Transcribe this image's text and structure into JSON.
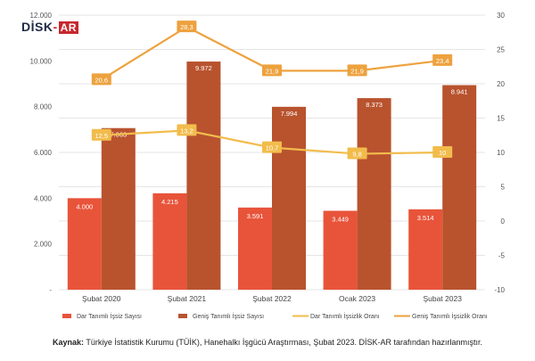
{
  "logo": {
    "part1": "DİSK",
    "part2": "-",
    "part3": "AR"
  },
  "caption": {
    "lead": "Kaynak:",
    "text": "Türkiye İstatistik Kurumu (TÜİK), Hanehalkı İşgücü Araştırması, Şubat 2023. DİSK-AR tarafından hazırlanmıştır."
  },
  "chart_data": {
    "type": "bar",
    "categories": [
      "Şubat 2020",
      "Şubat 2021",
      "Şubat 2022",
      "Ocak 2023",
      "Şubat 2023"
    ],
    "left_axis": {
      "ylim": [
        0,
        12000
      ],
      "ticks": [
        0,
        2000,
        4000,
        6000,
        8000,
        10000,
        12000
      ],
      "tick_labels": [
        "-",
        "2.000",
        "4.000",
        "6.000",
        "8.000",
        "10.000",
        "12.000"
      ]
    },
    "right_axis": {
      "ylim": [
        -10,
        30
      ],
      "ticks": [
        -10,
        -5,
        0,
        5,
        10,
        15,
        20,
        25,
        30
      ],
      "tick_labels": [
        "-10",
        "-5",
        "0",
        "5",
        "10",
        "15",
        "20",
        "25",
        "30"
      ]
    },
    "grid": true,
    "legend_position": "bottom",
    "series": [
      {
        "name": "Dar Tanımlı İşsiz Sayısı",
        "type": "bar",
        "axis": "left",
        "color": "#e8543a",
        "values": [
          4000,
          4215,
          3591,
          3449,
          3514
        ],
        "labels": [
          "4.000",
          "4.215",
          "3.591",
          "3.449",
          "3.514"
        ]
      },
      {
        "name": "Geniş Tanımlı İşsiz Sayısı",
        "type": "bar",
        "axis": "left",
        "color": "#b8532e",
        "values": [
          7063,
          9972,
          7994,
          8373,
          8941
        ],
        "labels": [
          "7.063",
          "9.972",
          "7.994",
          "8.373",
          "8.941"
        ]
      },
      {
        "name": "Dar Tanımlı İşsizlik Oranı",
        "type": "line",
        "axis": "right",
        "color": "#f2bc4c",
        "values": [
          12.5,
          13.2,
          10.7,
          9.8,
          10
        ],
        "labels": [
          "12,5",
          "13,2",
          "10,7",
          "9,8",
          "10"
        ]
      },
      {
        "name": "Geniş Tanımlı İşsizlik Oranı",
        "type": "line",
        "axis": "right",
        "color": "#eda23e",
        "values": [
          20.6,
          28.3,
          21.9,
          21.9,
          23.4
        ],
        "labels": [
          "20,6",
          "28,3",
          "21,9",
          "21,9",
          "23,4"
        ]
      }
    ]
  }
}
